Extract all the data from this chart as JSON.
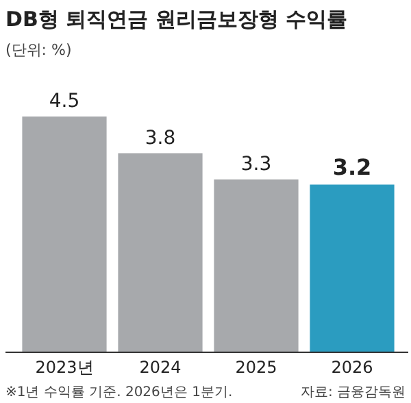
{
  "chart_data": {
    "type": "bar",
    "title": "DB형 퇴직연금 원리금보장형 수익률",
    "subtitle": "(단위: %)",
    "categories": [
      "2023년",
      "2024",
      "2025",
      "2026"
    ],
    "values": [
      4.5,
      3.8,
      3.3,
      3.2
    ],
    "colors": [
      "#a7a9ac",
      "#a7a9ac",
      "#a7a9ac",
      "#2b9cc0"
    ],
    "data_labels": true,
    "annotations": [
      "※1년 수익률 기준. 2026년은 1분기.",
      "자료: 금융감독원"
    ]
  }
}
